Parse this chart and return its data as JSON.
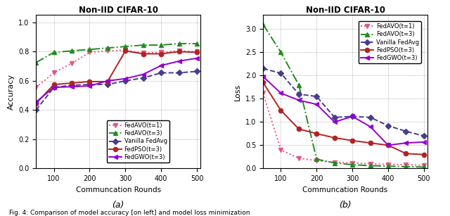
{
  "title": "Non-IID CIFAR-10",
  "xlabel": "Communcation Rounds",
  "acc_ylabel": "Accuracy",
  "loss_ylabel": "Loss",
  "rounds": [
    50,
    100,
    150,
    200,
    250,
    300,
    350,
    400,
    450,
    500
  ],
  "acc": {
    "FedAVO_t1": [
      0.555,
      0.655,
      0.72,
      0.795,
      0.805,
      0.81,
      0.79,
      0.795,
      0.805,
      0.8
    ],
    "FedAVO_t3": [
      0.725,
      0.795,
      0.805,
      0.815,
      0.825,
      0.835,
      0.845,
      0.845,
      0.855,
      0.855
    ],
    "VanillaFedAvg": [
      0.4,
      0.555,
      0.57,
      0.575,
      0.575,
      0.6,
      0.62,
      0.655,
      0.655,
      0.665
    ],
    "FedPSO_t3": [
      0.445,
      0.575,
      0.585,
      0.595,
      0.595,
      0.805,
      0.785,
      0.785,
      0.8,
      0.795
    ],
    "FedGWO_t3": [
      0.455,
      0.555,
      0.56,
      0.565,
      0.6,
      0.615,
      0.645,
      0.705,
      0.735,
      0.755
    ]
  },
  "loss": {
    "FedAVO_t1": [
      1.62,
      0.4,
      0.22,
      0.17,
      0.13,
      0.12,
      0.1,
      0.09,
      0.08,
      0.07
    ],
    "FedAVO_t3": [
      3.1,
      2.5,
      1.8,
      0.2,
      0.12,
      0.08,
      0.06,
      0.05,
      0.04,
      0.03
    ],
    "VanillaFedAvg": [
      2.15,
      2.05,
      1.6,
      1.55,
      1.1,
      1.12,
      1.1,
      0.92,
      0.8,
      0.7
    ],
    "FedPSO_t3": [
      1.85,
      1.25,
      0.85,
      0.75,
      0.66,
      0.6,
      0.55,
      0.5,
      0.32,
      0.3
    ],
    "FedGWO_t3": [
      1.98,
      1.62,
      1.47,
      1.38,
      1.0,
      1.12,
      0.9,
      0.5,
      0.55,
      0.57
    ]
  },
  "colors": {
    "FedAVO_t1": "#e75480",
    "FedAVO_t3": "#228B22",
    "VanillaFedAvg": "#483D8B",
    "FedPSO_t3": "#B22222",
    "FedGWO_t3": "#9400D3"
  },
  "linestyles": {
    "FedAVO_t1": "dotted",
    "FedAVO_t3": "dashdot",
    "VanillaFedAvg": "dashed",
    "FedPSO_t3": "solid",
    "FedGWO_t3": "solid"
  },
  "markers": {
    "FedAVO_t1": "v",
    "FedAVO_t3": "^",
    "VanillaFedAvg": "D",
    "FedPSO_t3": "o",
    "FedGWO_t3": "<"
  },
  "labels": {
    "FedAVO_t1": "FedAVO(t=1)",
    "FedAVO_t3": "FedAVO(t=3)",
    "VanillaFedAvg": "Vanilla FedAvg",
    "FedPSO_t3": "FedPSO(t=3)",
    "FedGWO_t3": "FedGWO(t=3)"
  },
  "acc_ylim": [
    0.0,
    1.05
  ],
  "loss_ylim": [
    0.0,
    3.3
  ],
  "acc_yticks": [
    0.0,
    0.2,
    0.4,
    0.6,
    0.8,
    1.0
  ],
  "loss_yticks": [
    0.0,
    0.5,
    1.0,
    1.5,
    2.0,
    2.5,
    3.0
  ],
  "xticks": [
    100,
    200,
    300,
    400,
    500
  ],
  "caption_a": "(a)",
  "caption_b": "(b)",
  "fig_caption": "Fig. 4: Comparison of model accuracy [on left] and model loss minimization"
}
